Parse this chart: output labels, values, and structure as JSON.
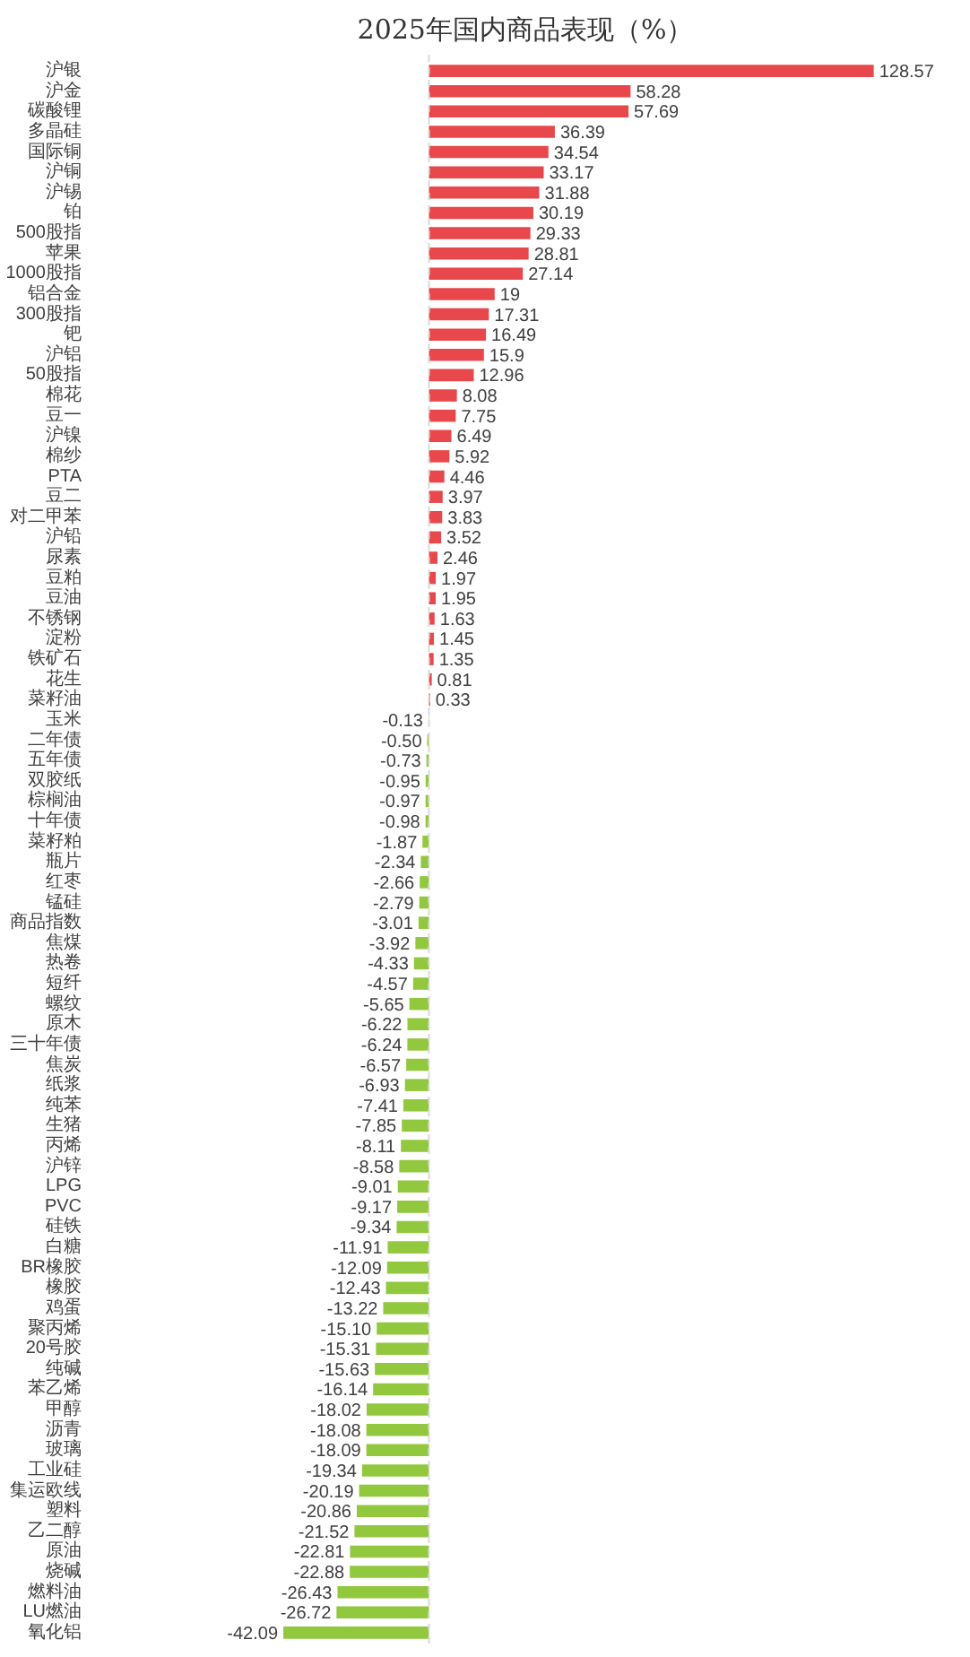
{
  "chart_data": {
    "type": "bar",
    "orientation": "horizontal",
    "title": "2025年国内商品表现（%）",
    "categories": [
      "沪银",
      "沪金",
      "碳酸锂",
      "多晶硅",
      "国际铜",
      "沪铜",
      "沪锡",
      "铂",
      "500股指",
      "苹果",
      "1000股指",
      "铝合金",
      "300股指",
      "钯",
      "沪铝",
      "50股指",
      "棉花",
      "豆一",
      "沪镍",
      "棉纱",
      "PTA",
      "豆二",
      "对二甲苯",
      "沪铅",
      "尿素",
      "豆粕",
      "豆油",
      "不锈钢",
      "淀粉",
      "铁矿石",
      "花生",
      "菜籽油",
      "玉米",
      "二年债",
      "五年债",
      "双胶纸",
      "棕榈油",
      "十年债",
      "菜籽粕",
      "瓶片",
      "红枣",
      "锰硅",
      "商品指数",
      "焦煤",
      "热卷",
      "短纤",
      "螺纹",
      "原木",
      "三十年债",
      "焦炭",
      "纸浆",
      "纯苯",
      "生猪",
      "丙烯",
      "沪锌",
      "LPG",
      "PVC",
      "硅铁",
      "白糖",
      "BR橡胶",
      "橡胶",
      "鸡蛋",
      "聚丙烯",
      "20号胶",
      "纯碱",
      "苯乙烯",
      "甲醇",
      "沥青",
      "玻璃",
      "工业硅",
      "集运欧线",
      "塑料",
      "乙二醇",
      "原油",
      "烧碱",
      "燃料油",
      "LU燃油",
      "氧化铝"
    ],
    "values": [
      128.57,
      58.28,
      57.69,
      36.39,
      34.54,
      33.17,
      31.88,
      30.19,
      29.33,
      28.81,
      27.14,
      19,
      17.31,
      16.49,
      15.9,
      12.96,
      8.08,
      7.75,
      6.49,
      5.92,
      4.46,
      3.97,
      3.83,
      3.52,
      2.46,
      1.97,
      1.95,
      1.63,
      1.45,
      1.35,
      0.81,
      0.33,
      -0.13,
      -0.5,
      -0.73,
      -0.95,
      -0.97,
      -0.98,
      -1.87,
      -2.34,
      -2.66,
      -2.79,
      -3.01,
      -3.92,
      -4.33,
      -4.57,
      -5.65,
      -6.22,
      -6.24,
      -6.57,
      -6.93,
      -7.41,
      -7.85,
      -8.11,
      -8.58,
      -9.01,
      -9.17,
      -9.34,
      -11.91,
      -12.09,
      -12.43,
      -13.22,
      -15.1,
      -15.31,
      -15.63,
      -16.14,
      -18.02,
      -18.08,
      -18.09,
      -19.34,
      -20.19,
      -20.86,
      -21.52,
      -22.81,
      -22.88,
      -26.43,
      -26.72,
      -42.09
    ],
    "value_labels": [
      "128.57",
      "58.28",
      "57.69",
      "36.39",
      "34.54",
      "33.17",
      "31.88",
      "30.19",
      "29.33",
      "28.81",
      "27.14",
      "19",
      "17.31",
      "16.49",
      "15.9",
      "12.96",
      "8.08",
      "7.75",
      "6.49",
      "5.92",
      "4.46",
      "3.97",
      "3.83",
      "3.52",
      "2.46",
      "1.97",
      "1.95",
      "1.63",
      "1.45",
      "1.35",
      "0.81",
      "0.33",
      "-0.13",
      "-0.50",
      "-0.73",
      "-0.95",
      "-0.97",
      "-0.98",
      "-1.87",
      "-2.34",
      "-2.66",
      "-2.79",
      "-3.01",
      "-3.92",
      "-4.33",
      "-4.57",
      "-5.65",
      "-6.22",
      "-6.24",
      "-6.57",
      "-6.93",
      "-7.41",
      "-7.85",
      "-8.11",
      "-8.58",
      "-9.01",
      "-9.17",
      "-9.34",
      "-11.91",
      "-12.09",
      "-12.43",
      "-13.22",
      "-15.10",
      "-15.31",
      "-15.63",
      "-16.14",
      "-18.02",
      "-18.08",
      "-18.09",
      "-19.34",
      "-20.19",
      "-20.86",
      "-21.52",
      "-22.81",
      "-22.88",
      "-26.43",
      "-26.72",
      "-42.09"
    ],
    "colors": [
      "#e8484b",
      "#e8484b",
      "#e8484b",
      "#e8484b",
      "#e8484b",
      "#e8484b",
      "#e8484b",
      "#e8484b",
      "#e8484b",
      "#e8484b",
      "#e8484b",
      "#e8484b",
      "#e8484b",
      "#e8484b",
      "#e8484b",
      "#e8484b",
      "#e8484b",
      "#e8484b",
      "#e8484b",
      "#e8484b",
      "#e8484b",
      "#e8484b",
      "#e8484b",
      "#e8484b",
      "#e8484b",
      "#e8484b",
      "#e8484b",
      "#e8484b",
      "#e8484b",
      "#e8484b",
      "#e8484b",
      "#e8484b",
      "#92c83e",
      "#92c83e",
      "#92c83e",
      "#92c83e",
      "#92c83e",
      "#92c83e",
      "#92c83e",
      "#92c83e",
      "#92c83e",
      "#92c83e",
      "#92c83e",
      "#92c83e",
      "#92c83e",
      "#92c83e",
      "#92c83e",
      "#92c83e",
      "#92c83e",
      "#92c83e",
      "#92c83e",
      "#92c83e",
      "#92c83e",
      "#92c83e",
      "#92c83e",
      "#92c83e",
      "#92c83e",
      "#92c83e",
      "#92c83e",
      "#92c83e",
      "#92c83e",
      "#92c83e",
      "#92c83e",
      "#92c83e",
      "#92c83e",
      "#92c83e",
      "#92c83e",
      "#92c83e",
      "#92c83e",
      "#92c83e",
      "#92c83e",
      "#92c83e",
      "#92c83e",
      "#92c83e",
      "#92c83e",
      "#92c83e",
      "#92c83e",
      "#92c83e"
    ],
    "ref_lines": [
      {
        "axis": "x",
        "value": 0,
        "color": "#d9d9d9",
        "line_style": "dashed"
      }
    ],
    "grid": false
  }
}
